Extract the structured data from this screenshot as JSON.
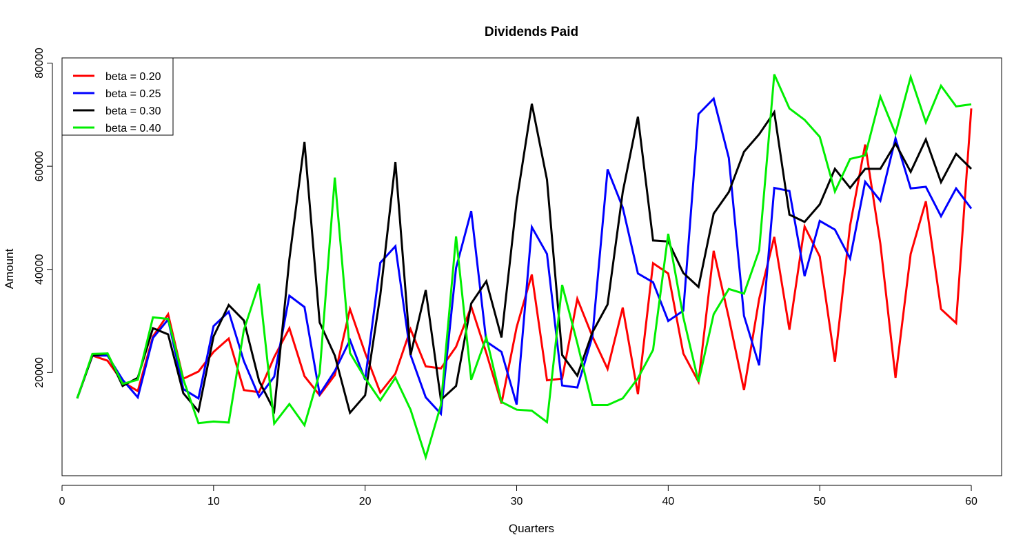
{
  "chart_data": {
    "type": "line",
    "title": "Dividends Paid",
    "xlabel": "Quarters",
    "ylabel": "Amount",
    "xlim": [
      0,
      62
    ],
    "ylim": [
      0,
      81000
    ],
    "xticks": [
      0,
      10,
      20,
      30,
      40,
      50,
      60
    ],
    "xtick_labels": [
      "0",
      "10",
      "20",
      "30",
      "40",
      "50",
      "60"
    ],
    "yticks": [
      20000,
      40000,
      60000,
      80000
    ],
    "ytick_labels": [
      "20000",
      "40000",
      "60000",
      "80000"
    ],
    "grid": false,
    "legend_position": "top-left",
    "x": [
      1,
      2,
      3,
      4,
      5,
      6,
      7,
      8,
      9,
      10,
      11,
      12,
      13,
      14,
      15,
      16,
      17,
      18,
      19,
      20,
      21,
      22,
      23,
      24,
      25,
      26,
      27,
      28,
      29,
      30,
      31,
      32,
      33,
      34,
      35,
      36,
      37,
      38,
      39,
      40,
      41,
      42,
      43,
      44,
      45,
      46,
      47,
      48,
      49,
      50,
      51,
      52,
      53,
      54,
      55,
      56,
      57,
      58,
      59,
      60
    ],
    "series": [
      {
        "name": "beta = 0.20",
        "color": "#ff0000",
        "values": [
          15000,
          23300,
          22300,
          18200,
          16400,
          27000,
          31300,
          18800,
          20200,
          24000,
          26600,
          16600,
          16200,
          23000,
          28600,
          19300,
          15600,
          19500,
          32300,
          23800,
          16100,
          19800,
          28400,
          21200,
          20800,
          25000,
          32800,
          23800,
          14000,
          28800,
          39000,
          18500,
          18800,
          34300,
          27000,
          20700,
          32600,
          15800,
          41200,
          39200,
          23700,
          18200,
          43600,
          30600,
          16600,
          34300,
          46300,
          28300,
          48300,
          42500,
          22100,
          48500,
          64200,
          45000,
          19000,
          43000,
          53200,
          32300,
          29600,
          71200
        ]
      },
      {
        "name": "beta = 0.25",
        "color": "#0000ff",
        "values": [
          15000,
          23300,
          23300,
          18600,
          15200,
          26700,
          30300,
          16800,
          15000,
          29000,
          31800,
          22200,
          15300,
          19200,
          34900,
          32700,
          15800,
          20300,
          26300,
          18600,
          41300,
          44500,
          23400,
          15200,
          12000,
          40300,
          51300,
          26000,
          24000,
          13800,
          48200,
          43000,
          17500,
          17100,
          27000,
          59400,
          52000,
          39200,
          37500,
          30000,
          32000,
          70100,
          73100,
          61600,
          31000,
          21400,
          55800,
          55200,
          38700,
          49400,
          47700,
          42100,
          57000,
          53300,
          65400,
          55700,
          56000,
          50300,
          55700,
          51800
        ]
      },
      {
        "name": "beta = 0.30",
        "color": "#000000",
        "values": [
          15000,
          23300,
          23700,
          17400,
          19000,
          28600,
          27400,
          16000,
          12500,
          27000,
          33100,
          30100,
          18400,
          12600,
          42000,
          64700,
          29700,
          23300,
          12200,
          15600,
          35000,
          60800,
          23400,
          36000,
          14700,
          17400,
          33400,
          37700,
          26800,
          53200,
          72100,
          57400,
          23400,
          19400,
          27800,
          33200,
          55000,
          69600,
          45600,
          45400,
          39300,
          36600,
          50800,
          55000,
          62800,
          66200,
          70500,
          50600,
          49200,
          52600,
          59500,
          55800,
          59500,
          59500,
          64400,
          58900,
          65200,
          56900,
          62400,
          59500
        ]
      },
      {
        "name": "beta = 0.40",
        "color": "#00ee00",
        "values": [
          15000,
          23600,
          23700,
          17800,
          18600,
          30700,
          30400,
          18700,
          10200,
          10500,
          10300,
          28300,
          37200,
          10100,
          13900,
          9800,
          19900,
          57800,
          23800,
          18900,
          14600,
          19000,
          12800,
          3600,
          13700,
          46400,
          18600,
          26800,
          14300,
          12800,
          12600,
          10400,
          37000,
          25700,
          13700,
          13700,
          15000,
          18900,
          24400,
          46900,
          30700,
          18200,
          31300,
          36200,
          35300,
          43700,
          77800,
          71200,
          69000,
          65700,
          55100,
          61400,
          62100,
          73500,
          66300,
          77300,
          68500,
          75600,
          71600,
          72000
        ]
      }
    ]
  }
}
